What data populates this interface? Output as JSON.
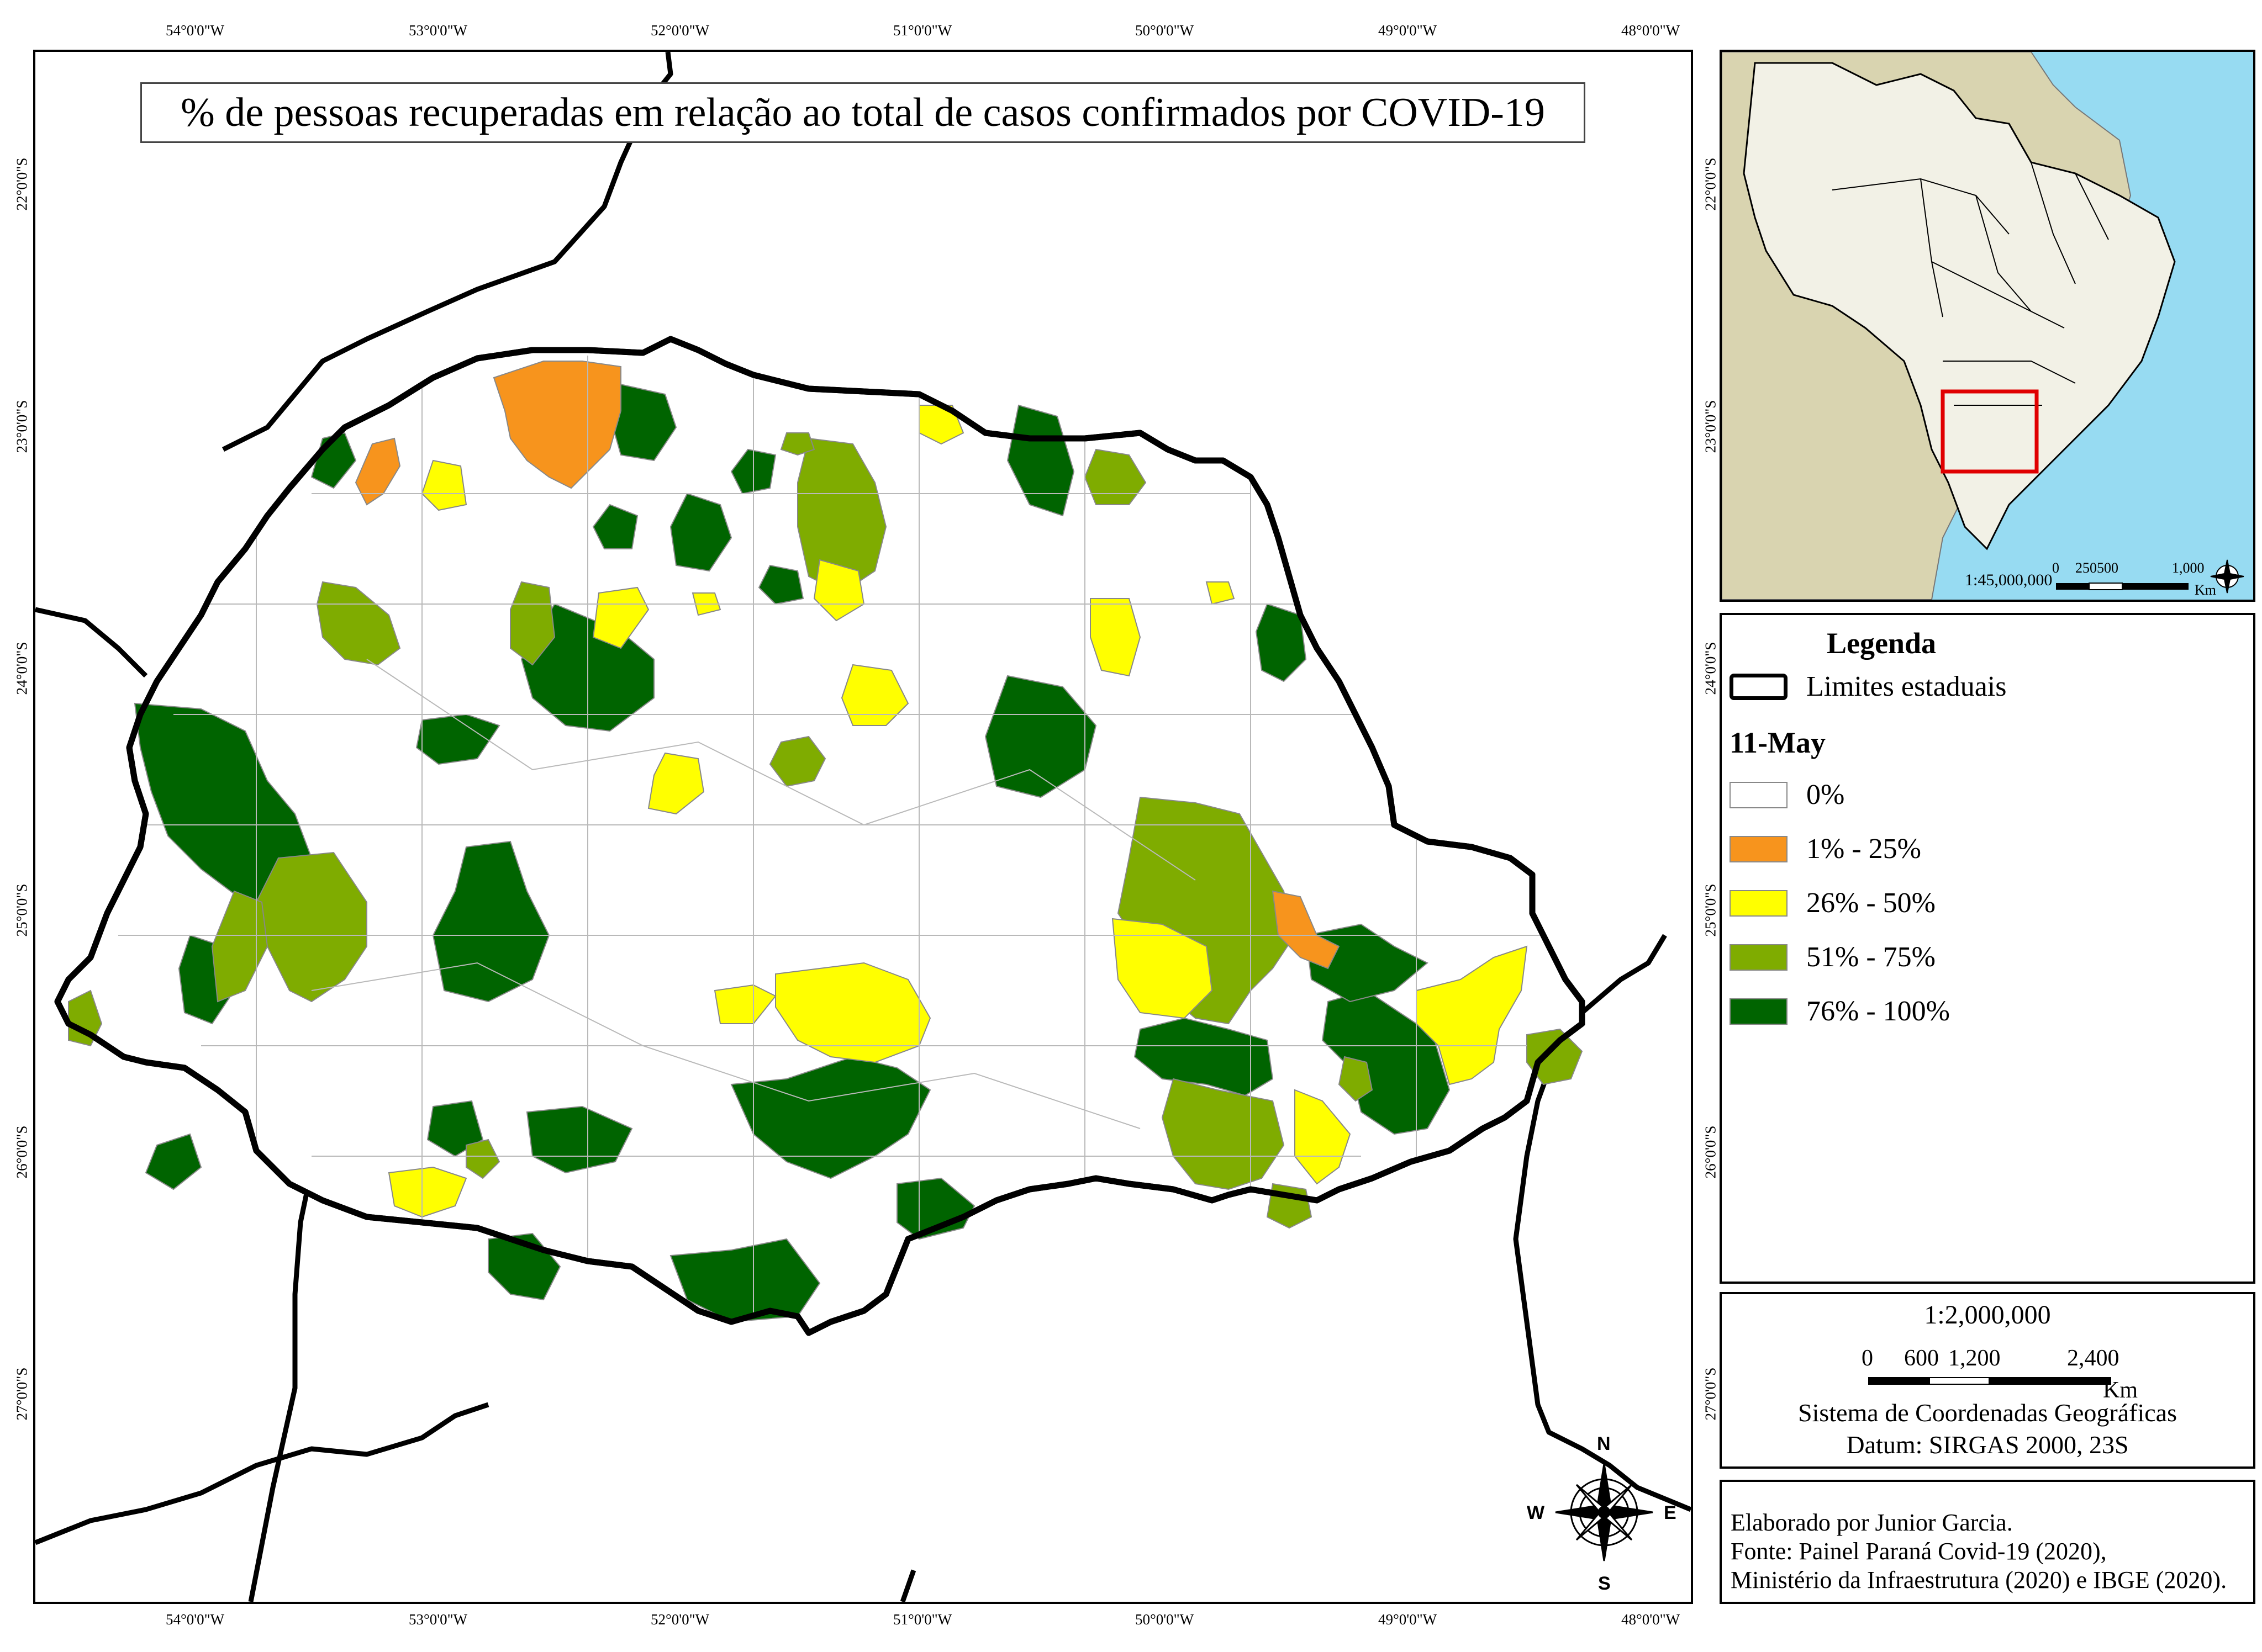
{
  "title": "% de pessoas recuperadas em relação ao total de casos confirmados por COVID-19",
  "longitude_ticks": [
    "54°0'0\"W",
    "53°0'0\"W",
    "52°0'0\"W",
    "51°0'0\"W",
    "50°0'0\"W",
    "49°0'0\"W",
    "48°0'0\"W"
  ],
  "latitude_ticks": [
    "22°0'0\"S",
    "23°0'0\"S",
    "24°0'0\"S",
    "25°0'0\"S",
    "26°0'0\"S",
    "27°0'0\"S"
  ],
  "colors": {
    "c0": "#ffffff",
    "c1": "#f7941d",
    "c2": "#ffff00",
    "c3": "#7fac00",
    "c4": "#006400",
    "ocean": "#97dbf2",
    "land_brazil": "#f2f1e6",
    "land_other": "#d9d4b0",
    "highlight": "#e00000"
  },
  "legend": {
    "heading": "Legenda",
    "boundary_label": "Limites estaduais",
    "date": "11-May",
    "classes": [
      {
        "label": "0%",
        "color": "#ffffff"
      },
      {
        "label": "1% - 25%",
        "color": "#f7941d"
      },
      {
        "label": "26% - 50%",
        "color": "#ffff00"
      },
      {
        "label": "51% - 75%",
        "color": "#7fac00"
      },
      {
        "label": "76% - 100%",
        "color": "#006400"
      }
    ]
  },
  "scale_box": {
    "ratio": "1:2,000,000",
    "bar_labels": [
      "0",
      "600",
      "1,200",
      "2,400"
    ],
    "unit": "Km",
    "crs": "Sistema de Coordenadas Geográficas",
    "datum": "Datum: SIRGAS 2000, 23S"
  },
  "inset": {
    "ratio": "1:45,000,000",
    "bar_labels": [
      "0",
      "250500",
      "1,000"
    ],
    "unit": "Km"
  },
  "compass": {
    "n": "N",
    "s": "S",
    "e": "E",
    "w": "W"
  },
  "credits": {
    "author": "Elaborado por Junior Garcia.",
    "source1": "Fonte: Painel Paraná Covid-19 (2020),",
    "source2": "Ministério da Infraestrutura (2020) e IBGE (2020)."
  }
}
